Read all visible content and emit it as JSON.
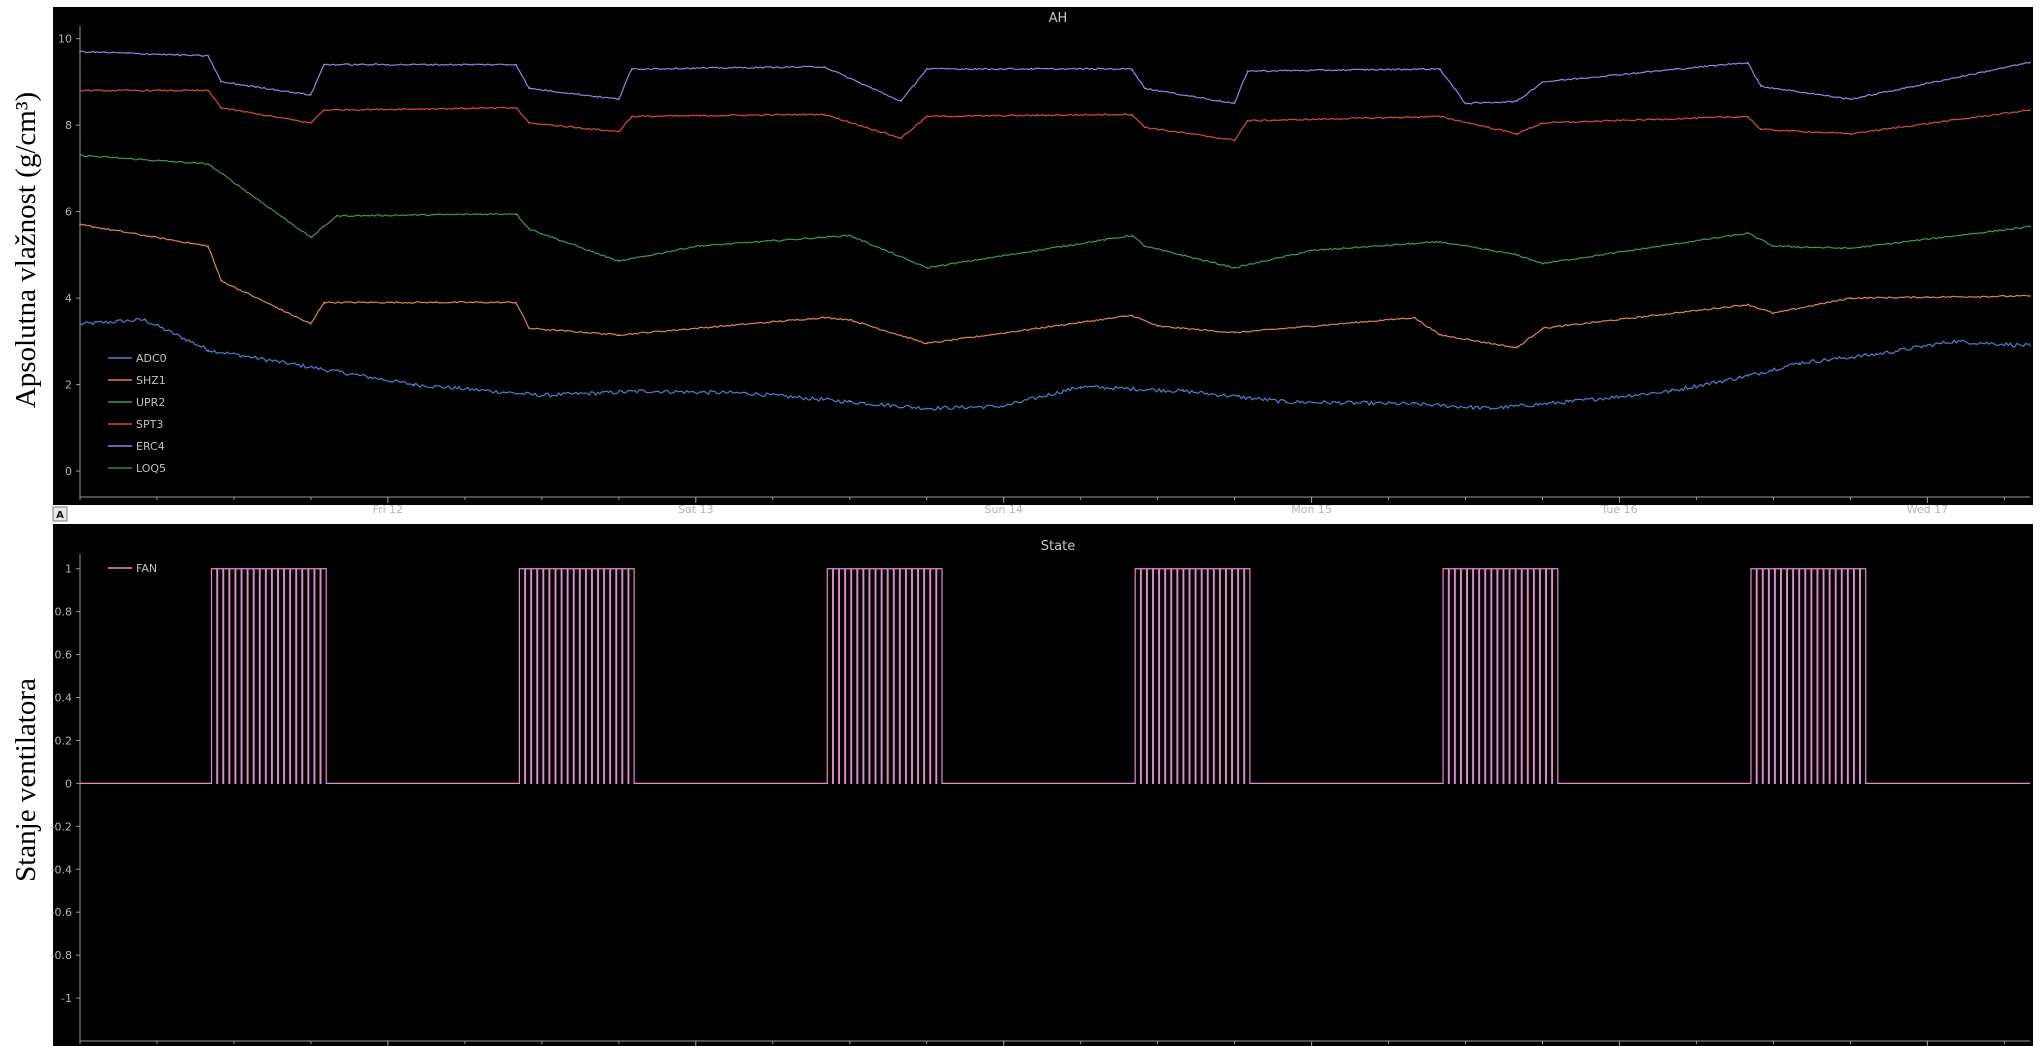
{
  "chart_data": [
    {
      "type": "line",
      "title": "AH",
      "ylabel": "Apsolutna vlažnost (g/cm³)",
      "ylim": [
        -0.6,
        10.2
      ],
      "yticks": [
        0,
        2,
        4,
        6,
        8,
        10
      ],
      "xlim": [
        "2023-05-11T00:00",
        "2023-05-17T08:00"
      ],
      "xticks": [
        {
          "label": "Fri 12",
          "x": "2023-05-12T00:00"
        },
        {
          "label": "Sat 13",
          "x": "2023-05-13T00:00"
        },
        {
          "label": "Sun 14",
          "x": "2023-05-14T00:00"
        },
        {
          "label": "Mon 15",
          "x": "2023-05-15T00:00"
        },
        {
          "label": "Tue 16",
          "x": "2023-05-16T00:00"
        },
        {
          "label": "Wed 17",
          "x": "2023-05-17T00:00"
        }
      ],
      "legend": "bottom-left",
      "series": [
        {
          "name": "ADC0",
          "color": "#4a7fcf",
          "x": [
            "2023-05-11T00:00",
            "2023-05-11T05:00",
            "2023-05-11T10:00",
            "2023-05-11T16:00",
            "2023-05-12T02:00",
            "2023-05-12T12:00",
            "2023-05-12T20:00",
            "2023-05-13T04:00",
            "2023-05-13T12:00",
            "2023-05-13T18:00",
            "2023-05-14T00:00",
            "2023-05-14T06:00",
            "2023-05-14T14:00",
            "2023-05-14T22:00",
            "2023-05-15T08:00",
            "2023-05-15T14:00",
            "2023-05-15T20:00",
            "2023-05-16T04:00",
            "2023-05-16T10:00",
            "2023-05-16T14:00",
            "2023-05-16T20:00",
            "2023-05-17T02:00",
            "2023-05-17T08:00"
          ],
          "y": [
            3.4,
            3.5,
            2.8,
            2.5,
            2.0,
            1.75,
            1.85,
            1.8,
            1.6,
            1.45,
            1.5,
            1.95,
            1.85,
            1.6,
            1.55,
            1.45,
            1.6,
            1.85,
            2.2,
            2.5,
            2.7,
            3.0,
            2.9
          ]
        },
        {
          "name": "SHZ1",
          "color": "#e0834a",
          "x": [
            "2023-05-11T00:00",
            "2023-05-11T10:00",
            "2023-05-11T11:00",
            "2023-05-11T18:00",
            "2023-05-11T19:00",
            "2023-05-12T10:00",
            "2023-05-12T11:00",
            "2023-05-12T18:00",
            "2023-05-13T10:00",
            "2023-05-13T12:00",
            "2023-05-13T18:00",
            "2023-05-14T10:00",
            "2023-05-14T12:00",
            "2023-05-14T18:00",
            "2023-05-15T08:00",
            "2023-05-15T10:00",
            "2023-05-15T16:00",
            "2023-05-15T18:00",
            "2023-05-16T10:00",
            "2023-05-16T12:00",
            "2023-05-16T18:00",
            "2023-05-17T08:00"
          ],
          "y": [
            5.7,
            5.2,
            4.4,
            3.4,
            3.9,
            3.9,
            3.3,
            3.15,
            3.55,
            3.5,
            2.95,
            3.6,
            3.35,
            3.2,
            3.55,
            3.15,
            2.85,
            3.3,
            3.85,
            3.65,
            4.0,
            4.05
          ]
        },
        {
          "name": "UPR2",
          "color": "#3a9a4a",
          "x": [
            "2023-05-11T00:00",
            "2023-05-11T10:00",
            "2023-05-11T18:00",
            "2023-05-11T20:00",
            "2023-05-12T10:00",
            "2023-05-12T11:00",
            "2023-05-12T18:00",
            "2023-05-13T00:00",
            "2023-05-13T12:00",
            "2023-05-13T18:00",
            "2023-05-14T10:00",
            "2023-05-14T11:00",
            "2023-05-14T18:00",
            "2023-05-15T00:00",
            "2023-05-15T10:00",
            "2023-05-15T16:00",
            "2023-05-15T18:00",
            "2023-05-16T10:00",
            "2023-05-16T12:00",
            "2023-05-16T18:00",
            "2023-05-17T08:00"
          ],
          "y": [
            7.3,
            7.1,
            5.4,
            5.9,
            5.95,
            5.6,
            4.85,
            5.2,
            5.45,
            4.7,
            5.45,
            5.2,
            4.7,
            5.1,
            5.3,
            5.0,
            4.8,
            5.5,
            5.2,
            5.15,
            5.65
          ]
        },
        {
          "name": "SPT3",
          "color": "#d84a3a",
          "x": [
            "2023-05-11T00:00",
            "2023-05-11T10:00",
            "2023-05-11T11:00",
            "2023-05-11T18:00",
            "2023-05-11T19:00",
            "2023-05-12T10:00",
            "2023-05-12T11:00",
            "2023-05-12T18:00",
            "2023-05-12T19:00",
            "2023-05-13T10:00",
            "2023-05-13T16:00",
            "2023-05-13T18:00",
            "2023-05-14T10:00",
            "2023-05-14T11:00",
            "2023-05-14T18:00",
            "2023-05-14T19:00",
            "2023-05-15T10:00",
            "2023-05-15T16:00",
            "2023-05-15T18:00",
            "2023-05-16T10:00",
            "2023-05-16T11:00",
            "2023-05-16T18:00",
            "2023-05-17T08:00"
          ],
          "y": [
            8.8,
            8.8,
            8.4,
            8.05,
            8.35,
            8.4,
            8.05,
            7.85,
            8.2,
            8.25,
            7.7,
            8.2,
            8.25,
            7.95,
            7.65,
            8.1,
            8.2,
            7.8,
            8.05,
            8.2,
            7.9,
            7.8,
            8.35
          ]
        },
        {
          "name": "ERC4",
          "color": "#9a7fe0",
          "x": [
            "2023-05-11T00:00",
            "2023-05-11T10:00",
            "2023-05-11T11:00",
            "2023-05-11T18:00",
            "2023-05-11T19:00",
            "2023-05-12T10:00",
            "2023-05-12T11:00",
            "2023-05-12T18:00",
            "2023-05-12T19:00",
            "2023-05-13T10:00",
            "2023-05-13T16:00",
            "2023-05-13T18:00",
            "2023-05-14T10:00",
            "2023-05-14T11:00",
            "2023-05-14T18:00",
            "2023-05-14T19:00",
            "2023-05-15T10:00",
            "2023-05-15T12:00",
            "2023-05-15T16:00",
            "2023-05-15T18:00",
            "2023-05-16T10:00",
            "2023-05-16T11:00",
            "2023-05-16T18:00",
            "2023-05-17T08:00"
          ],
          "y": [
            9.7,
            9.6,
            9.0,
            8.7,
            9.4,
            9.4,
            8.85,
            8.6,
            9.3,
            9.35,
            8.55,
            9.3,
            9.3,
            8.85,
            8.5,
            9.25,
            9.3,
            8.5,
            8.55,
            9.0,
            9.45,
            8.9,
            8.6,
            9.45
          ]
        },
        {
          "name": "LOQ5",
          "color": "#2f8a3a",
          "x": [],
          "y": []
        }
      ]
    },
    {
      "type": "line",
      "title": "State",
      "ylabel": "Stanje ventilatora",
      "ylim": [
        -1.2,
        1.05
      ],
      "yticks": [
        1,
        0.8,
        0.6,
        0.4,
        0.2,
        0,
        -0.2,
        -0.4,
        -0.6,
        -0.8,
        -1
      ],
      "xlim": [
        "2023-05-11T00:00",
        "2023-05-17T08:00"
      ],
      "xticks": [
        {
          "label": "Fri 12",
          "x": "2023-05-12T00:00"
        },
        {
          "label": "Sat 13",
          "x": "2023-05-13T00:00"
        },
        {
          "label": "Sun 14",
          "x": "2023-05-14T00:00"
        },
        {
          "label": "Mon 15",
          "x": "2023-05-15T00:00"
        },
        {
          "label": "Tue 16",
          "x": "2023-05-16T00:00"
        },
        {
          "label": "Wed 17",
          "x": "2023-05-17T00:00"
        }
      ],
      "legend": "top-left",
      "series": [
        {
          "name": "FAN",
          "color": "#e58ad0",
          "on_periods": [
            [
              "2023-05-11T10:15",
              "2023-05-11T19:15"
            ],
            [
              "2023-05-12T10:15",
              "2023-05-12T19:15"
            ],
            [
              "2023-05-13T10:15",
              "2023-05-13T19:15"
            ],
            [
              "2023-05-14T10:15",
              "2023-05-14T19:15"
            ],
            [
              "2023-05-15T10:15",
              "2023-05-15T19:15"
            ],
            [
              "2023-05-16T10:15",
              "2023-05-16T19:15"
            ]
          ],
          "cycles_per_period": 19,
          "values": [
            0,
            1
          ]
        }
      ]
    }
  ],
  "ui": {
    "panel_toggle_label": "A",
    "background": "#000000",
    "axis_color": "#9a9a9a"
  }
}
